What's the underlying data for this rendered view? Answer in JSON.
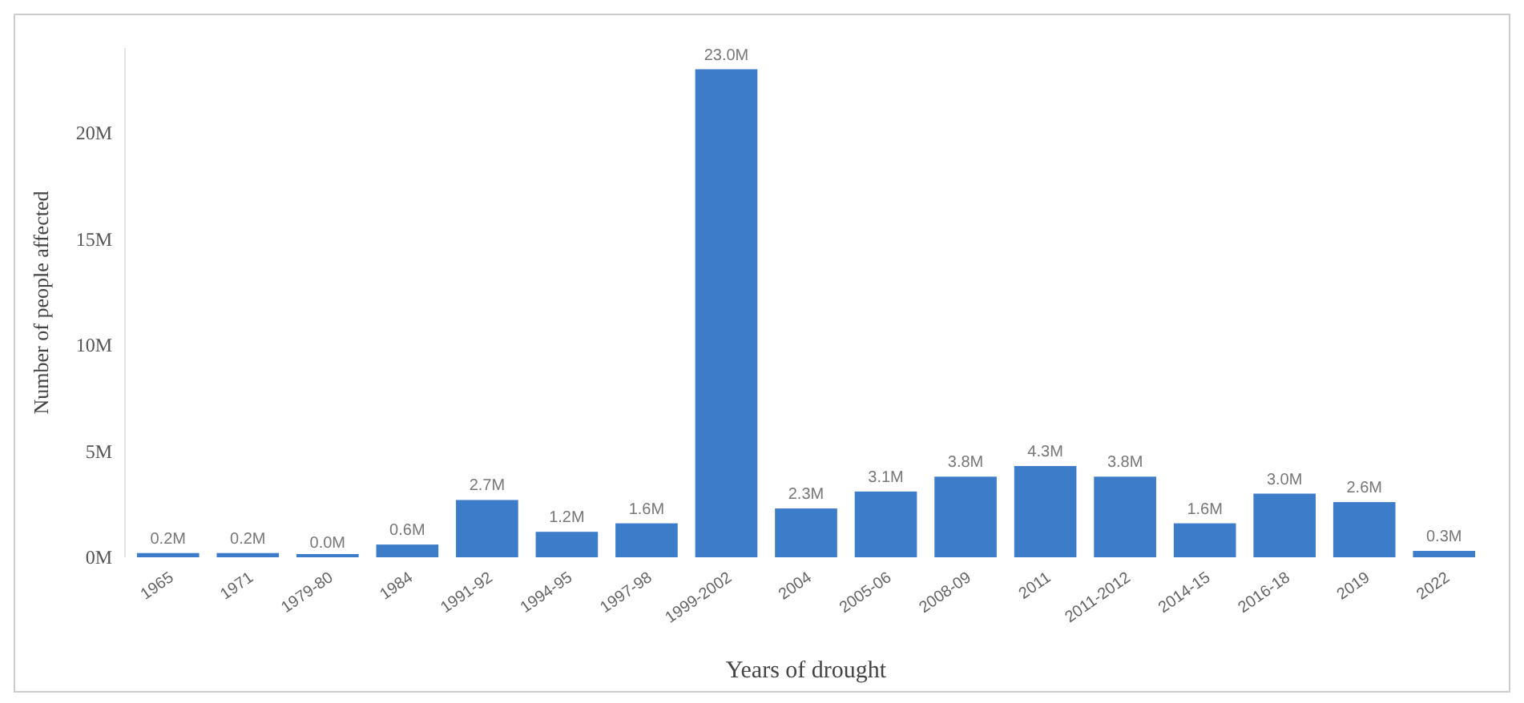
{
  "chart_data": {
    "type": "bar",
    "xlabel": "Years of drought",
    "ylabel": "Number of people affected",
    "categories": [
      "1965",
      "1971",
      "1979-80",
      "1984",
      "1991-92",
      "1994-95",
      "1997-98",
      "1999-2002",
      "2004",
      "2005-06",
      "2008-09",
      "2011",
      "2011-2012",
      "2014-15",
      "2016-18",
      "2019",
      "2022"
    ],
    "values": [
      0.2,
      0.2,
      0.0,
      0.6,
      2.7,
      1.2,
      1.6,
      23.0,
      2.3,
      3.1,
      3.8,
      4.3,
      3.8,
      1.6,
      3.0,
      2.6,
      0.3
    ],
    "value_labels": [
      "0.2M",
      "0.2M",
      "0.0M",
      "0.6M",
      "2.7M",
      "1.2M",
      "1.6M",
      "23.0M",
      "2.3M",
      "3.1M",
      "3.8M",
      "4.3M",
      "3.8M",
      "1.6M",
      "3.0M",
      "2.6M",
      "0.3M"
    ],
    "color": "#3d7cc9",
    "ylim": [
      0,
      24
    ],
    "yticks": [
      {
        "value": 0,
        "label": "0M"
      },
      {
        "value": 5,
        "label": "5M"
      },
      {
        "value": 10,
        "label": "10M"
      },
      {
        "value": 15,
        "label": "15M"
      },
      {
        "value": 20,
        "label": "20M"
      }
    ],
    "grid": false
  }
}
